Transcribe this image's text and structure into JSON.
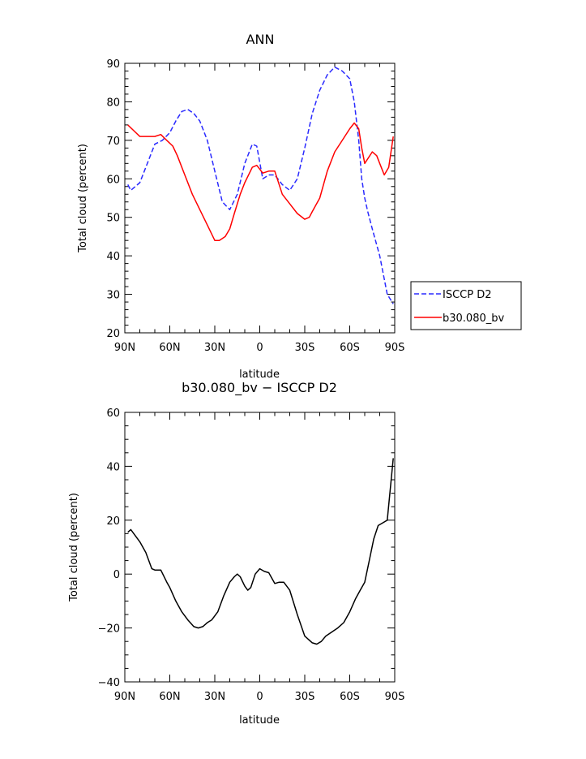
{
  "chart_data": [
    {
      "type": "line",
      "title": "ANN",
      "xlabel": "latitude",
      "ylabel": "Total cloud (percent)",
      "xlim": [
        90,
        -90
      ],
      "ylim": [
        20,
        90
      ],
      "xticks": [
        90,
        60,
        30,
        0,
        -30,
        -60,
        -90
      ],
      "xtick_labels": [
        "90N",
        "60N",
        "30N",
        "0",
        "30S",
        "60S",
        "90S"
      ],
      "yticks": [
        20,
        30,
        40,
        50,
        60,
        70,
        80,
        90
      ],
      "ytick_labels": [
        "20",
        "30",
        "40",
        "50",
        "60",
        "70",
        "80",
        "90"
      ],
      "legend_position": "right",
      "series": [
        {
          "name": "ISCCP D2",
          "color": "#2a2aff",
          "dash": "dashed",
          "x": [
            88,
            86,
            80,
            75,
            70,
            65,
            60,
            56,
            52,
            48,
            44,
            40,
            35,
            30,
            25,
            20,
            15,
            10,
            5,
            2,
            -2,
            -6,
            -10,
            -15,
            -20,
            -25,
            -30,
            -35,
            -40,
            -45,
            -50,
            -55,
            -60,
            -63,
            -66,
            -68,
            -70,
            -72,
            -75,
            -80,
            -85,
            -89
          ],
          "y": [
            58.5,
            57,
            59,
            64,
            69,
            70,
            72,
            75,
            77.5,
            78,
            77,
            75,
            70,
            62,
            54,
            52,
            56,
            64,
            69,
            68.5,
            60,
            61,
            61,
            58.5,
            57,
            60,
            68,
            77,
            83,
            87,
            89,
            88,
            86,
            80,
            70,
            60,
            55,
            51.5,
            47,
            40,
            30,
            27.5
          ]
        },
        {
          "name": "b30.080_bv",
          "color": "#ff0000",
          "dash": "solid",
          "x": [
            88,
            84,
            80,
            75,
            70,
            66,
            62,
            58,
            55,
            50,
            45,
            40,
            35,
            30,
            27,
            23,
            20,
            17,
            13,
            10,
            5,
            2,
            -2,
            -6,
            -10,
            -15,
            -20,
            -25,
            -30,
            -33,
            -35,
            -40,
            -45,
            -50,
            -55,
            -60,
            -63,
            -66,
            -68,
            -70,
            -75,
            -78,
            -80,
            -83,
            -86,
            -89
          ],
          "y": [
            74,
            72.5,
            71,
            71,
            71,
            71.5,
            70,
            68.5,
            66,
            61,
            56,
            52,
            48,
            44,
            44,
            45,
            47,
            51,
            56,
            59,
            63,
            63.5,
            61.5,
            62,
            62,
            56,
            53.5,
            51,
            49.5,
            50,
            51.5,
            55,
            62,
            67,
            70,
            73,
            74.5,
            73,
            68,
            64,
            67,
            66,
            64,
            61,
            63,
            71
          ]
        }
      ]
    },
    {
      "type": "line",
      "title": "b30.080_bv − ISCCP D2",
      "xlabel": "latitude",
      "ylabel": "Total cloud (percent)",
      "xlim": [
        90,
        -90
      ],
      "ylim": [
        -40,
        60
      ],
      "xticks": [
        90,
        60,
        30,
        0,
        -30,
        -60,
        -90
      ],
      "xtick_labels": [
        "90N",
        "60N",
        "30N",
        "0",
        "30S",
        "60S",
        "90S"
      ],
      "yticks": [
        -40,
        -20,
        0,
        20,
        40,
        60
      ],
      "ytick_labels": [
        "−40",
        "−20",
        "0",
        "20",
        "40",
        "60"
      ],
      "series": [
        {
          "color": "#000000",
          "dash": "solid",
          "x": [
            88,
            86,
            80,
            76,
            72,
            70,
            66,
            62,
            60,
            56,
            52,
            48,
            44,
            41,
            38,
            35,
            32,
            28,
            24,
            20,
            17,
            15,
            13,
            10,
            8,
            6,
            3,
            0,
            -3,
            -6,
            -10,
            -13,
            -16,
            -20,
            -25,
            -30,
            -35,
            -38,
            -41,
            -44,
            -48,
            -52,
            -56,
            -60,
            -64,
            -67,
            -70,
            -73,
            -76,
            -79,
            -82,
            -85,
            -89
          ],
          "y": [
            15.5,
            16.5,
            12,
            8,
            2,
            1.5,
            1.5,
            -3,
            -5,
            -10,
            -14,
            -17,
            -19.5,
            -20,
            -19.5,
            -18,
            -17,
            -14,
            -8,
            -3,
            -1,
            0,
            -1,
            -4.5,
            -6,
            -5,
            0,
            2,
            1,
            0.5,
            -3.5,
            -3,
            -3,
            -6,
            -15,
            -23,
            -25.5,
            -26,
            -25,
            -23,
            -21.5,
            -20,
            -18,
            -14,
            -9,
            -6,
            -3,
            5,
            13,
            18,
            19,
            20,
            43
          ]
        }
      ]
    }
  ]
}
